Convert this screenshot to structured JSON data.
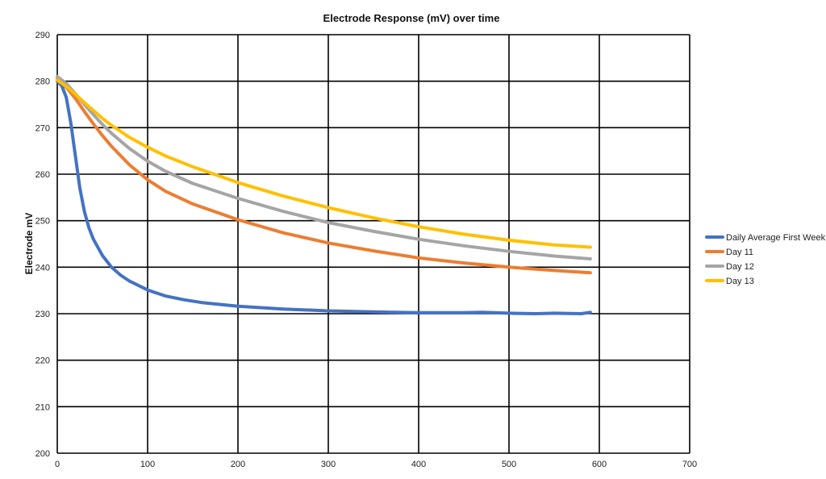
{
  "chart_data": {
    "type": "line",
    "title": "Electrode Response (mV) over time",
    "xlabel": "",
    "ylabel": "Electrode mV",
    "xlim": [
      0,
      700
    ],
    "ylim": [
      200,
      290
    ],
    "xticks": [
      0,
      100,
      200,
      300,
      400,
      500,
      600,
      700
    ],
    "yticks": [
      200,
      210,
      220,
      230,
      240,
      250,
      260,
      270,
      280,
      290
    ],
    "grid": true,
    "legend_position": "right",
    "series": [
      {
        "name": "Daily Average First Week",
        "color": "#4472C4",
        "x": [
          0,
          5,
          10,
          15,
          20,
          25,
          30,
          35,
          40,
          50,
          60,
          70,
          80,
          100,
          120,
          140,
          160,
          180,
          200,
          250,
          300,
          350,
          400,
          450,
          470,
          500,
          530,
          550,
          580,
          590
        ],
        "y": [
          280,
          279,
          276.5,
          271,
          264,
          257,
          252,
          248.5,
          246,
          242.5,
          240,
          238.3,
          237,
          235.1,
          233.8,
          233,
          232.4,
          232,
          231.6,
          231,
          230.6,
          230.4,
          230.2,
          230.2,
          230.3,
          230.1,
          230,
          230.1,
          230,
          230.3
        ]
      },
      {
        "name": "Day 11",
        "color": "#ED7D31",
        "x": [
          0,
          10,
          20,
          30,
          40,
          50,
          60,
          80,
          100,
          120,
          150,
          200,
          250,
          300,
          350,
          400,
          450,
          500,
          550,
          590
        ],
        "y": [
          280.5,
          278.7,
          276.3,
          273.5,
          270.8,
          268.3,
          266,
          262,
          258.8,
          256.3,
          253.6,
          250.2,
          247.4,
          245.2,
          243.5,
          242,
          240.9,
          240,
          239.3,
          238.8
        ]
      },
      {
        "name": "Day 12",
        "color": "#A5A5A5",
        "x": [
          0,
          10,
          20,
          30,
          40,
          50,
          60,
          80,
          100,
          120,
          150,
          200,
          250,
          300,
          350,
          400,
          450,
          500,
          550,
          590
        ],
        "y": [
          281,
          279.5,
          277.3,
          275,
          272.8,
          270.7,
          268.8,
          265.5,
          262.8,
          260.6,
          258,
          254.8,
          252,
          249.6,
          247.7,
          246,
          244.6,
          243.4,
          242.4,
          241.8
        ]
      },
      {
        "name": "Day 13",
        "color": "#FFC000",
        "x": [
          0,
          10,
          20,
          30,
          40,
          50,
          60,
          80,
          100,
          120,
          150,
          200,
          250,
          300,
          350,
          400,
          450,
          500,
          550,
          590
        ],
        "y": [
          280.2,
          278.9,
          277.2,
          275.4,
          273.7,
          272,
          270.5,
          267.9,
          265.8,
          263.9,
          261.6,
          258.2,
          255.3,
          252.8,
          250.6,
          248.7,
          247.1,
          245.8,
          244.8,
          244.3
        ]
      }
    ]
  }
}
